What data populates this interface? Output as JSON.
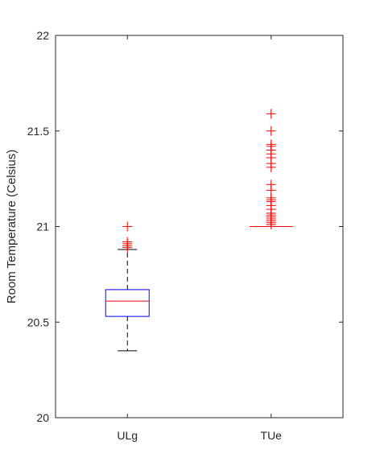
{
  "chart_data": {
    "type": "box",
    "ylabel": "Room Temperature (Celsius)",
    "ylim": [
      20,
      22
    ],
    "yticks": [
      20,
      20.5,
      21,
      21.5,
      22
    ],
    "ytick_labels": [
      "20",
      "20.5",
      "21",
      "21.5",
      "22"
    ],
    "categories": [
      "ULg",
      "TUe"
    ],
    "boxes": [
      {
        "label": "ULg",
        "q1": 20.53,
        "median": 20.61,
        "q3": 20.67,
        "whisker_low": 20.35,
        "whisker_high": 20.88,
        "outliers": [
          20.89,
          20.9,
          20.91,
          20.92,
          21.0
        ]
      },
      {
        "label": "TUe",
        "q1": 21.0,
        "median": 21.0,
        "q3": 21.0,
        "whisker_low": 21.0,
        "whisker_high": 21.0,
        "outliers": [
          21.01,
          21.02,
          21.03,
          21.04,
          21.05,
          21.06,
          21.07,
          21.09,
          21.11,
          21.13,
          21.14,
          21.15,
          21.19,
          21.22,
          21.31,
          21.33,
          21.36,
          21.38,
          21.4,
          21.42,
          21.43,
          21.5,
          21.59
        ]
      }
    ],
    "colors": {
      "box": "#0000ff",
      "median": "#ff0000",
      "whisker": "#000000",
      "outlier": "#ff0000",
      "axes": "#262626"
    }
  }
}
